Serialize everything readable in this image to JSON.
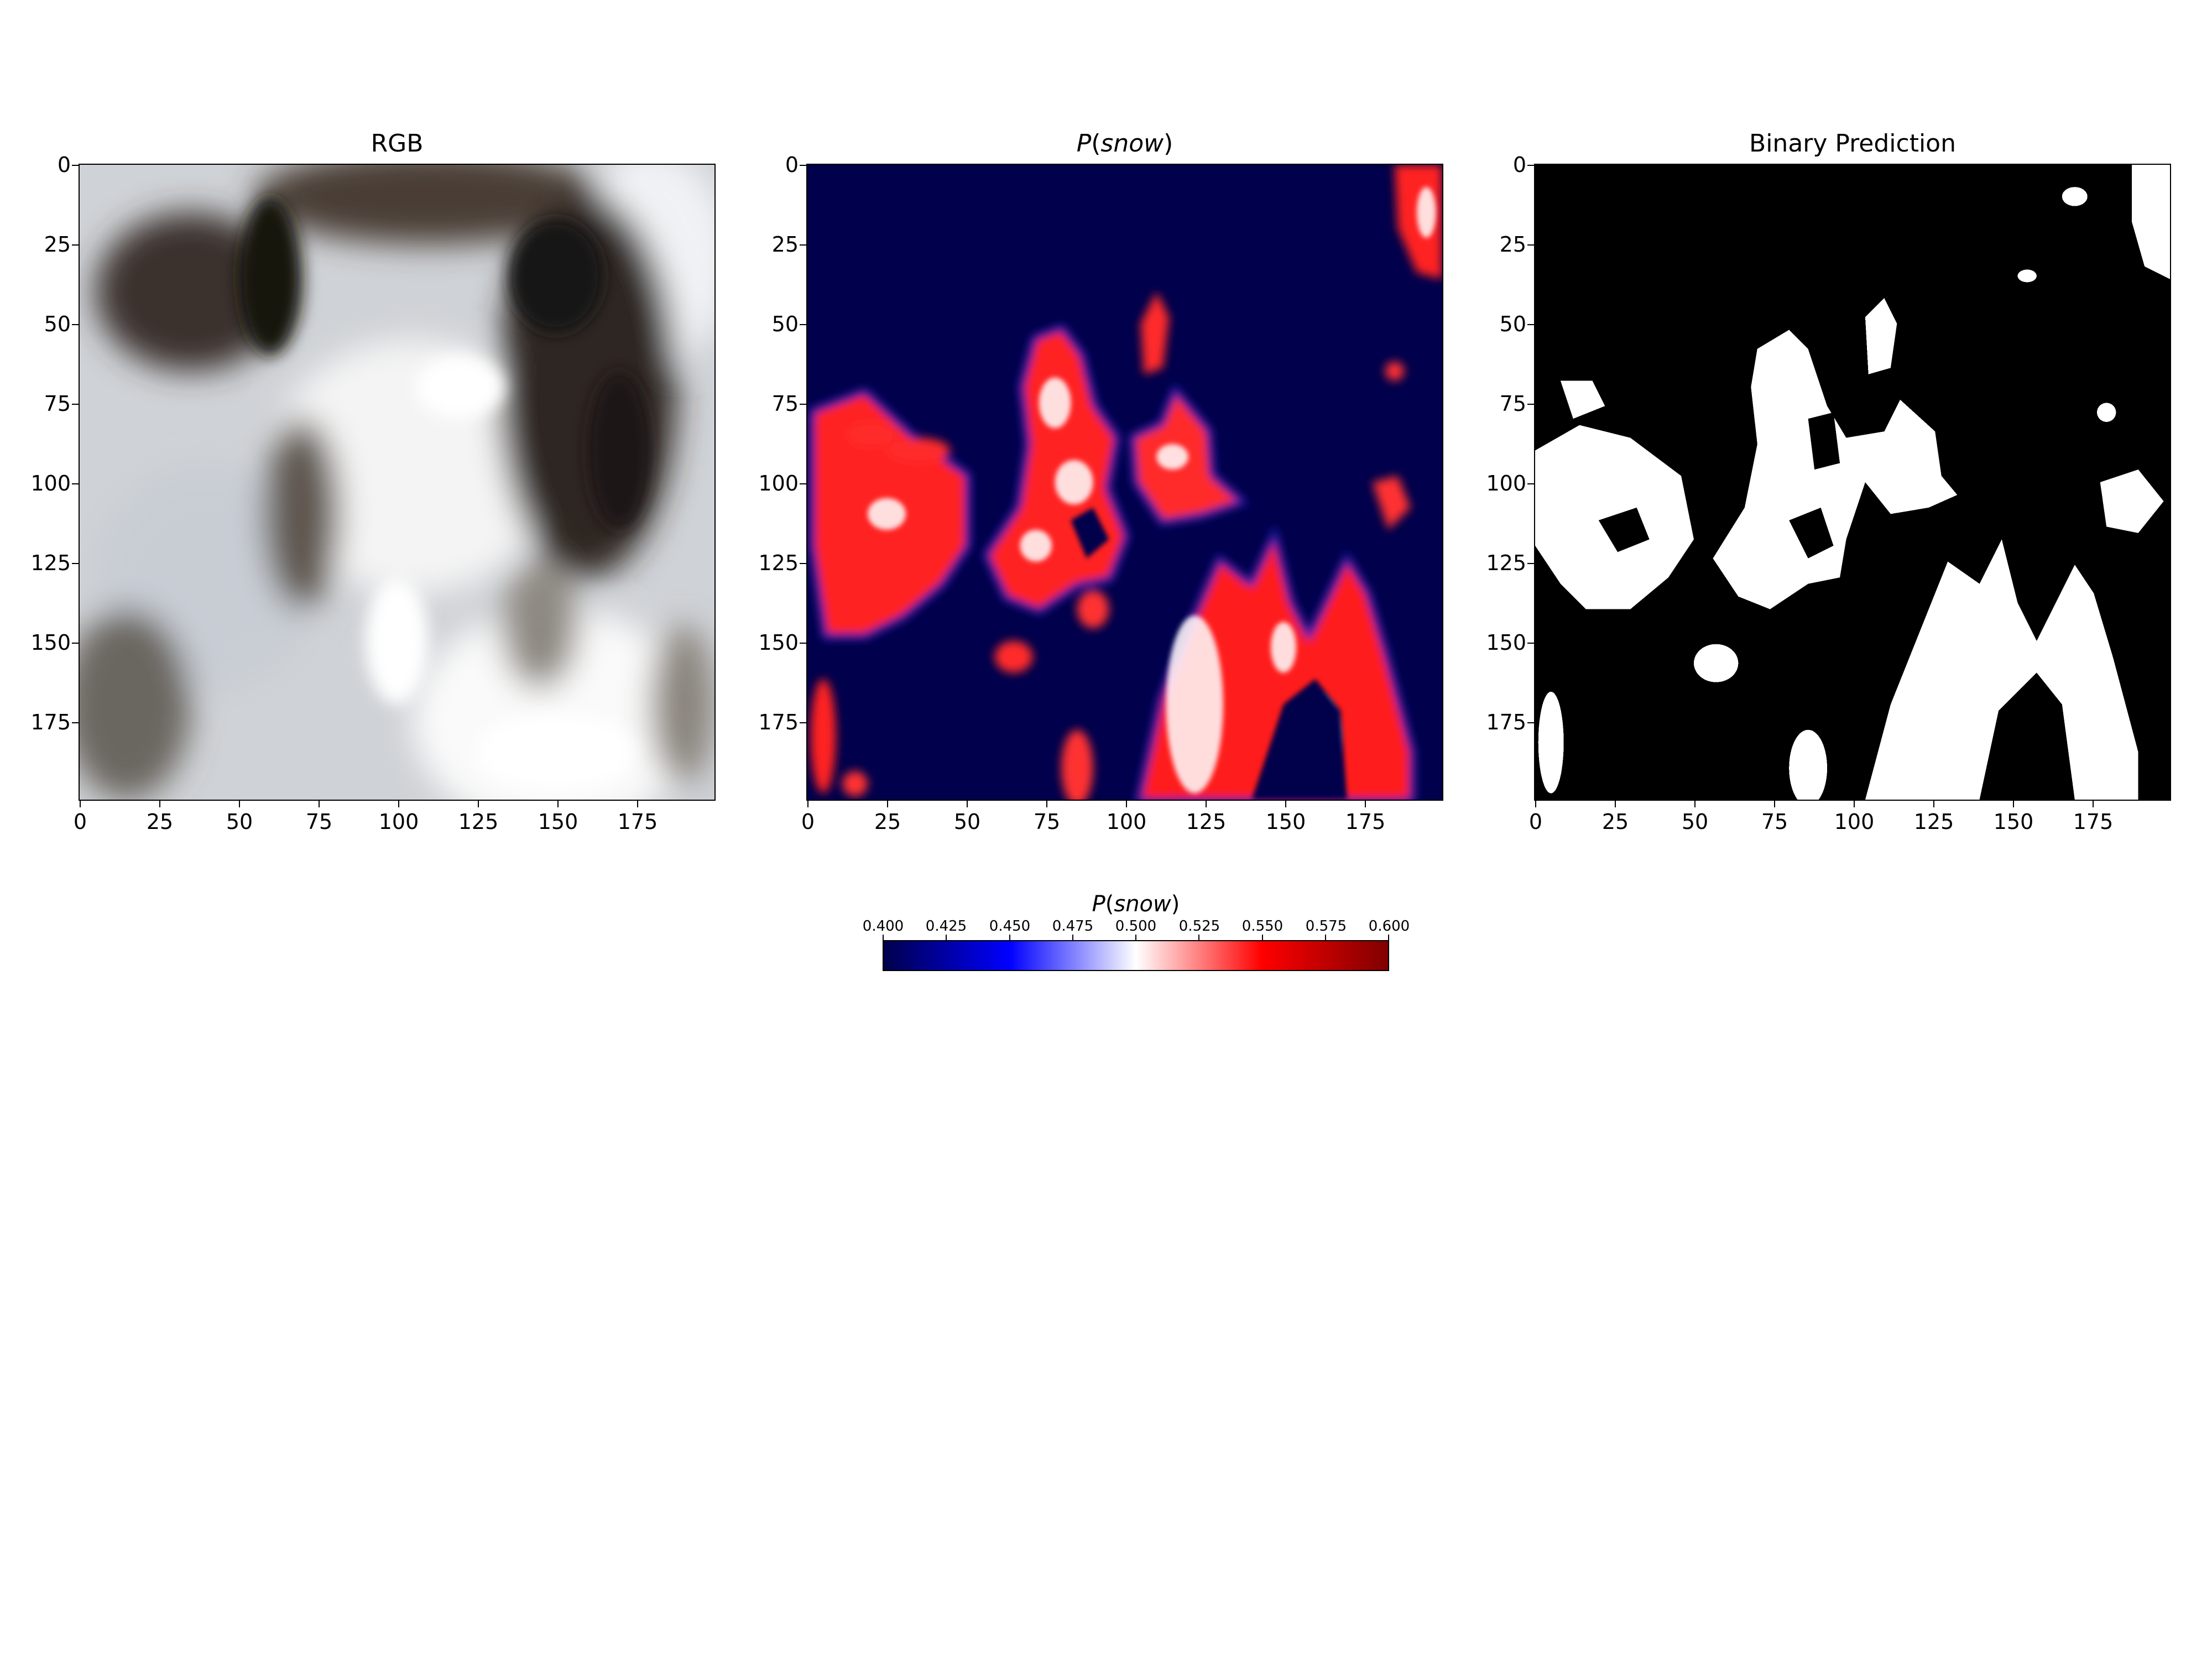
{
  "panels": [
    {
      "title": "RGB"
    },
    {
      "title_prefix": "P",
      "title_open": "(",
      "title_var": "snow",
      "title_close": ")"
    },
    {
      "title": "Binary Prediction"
    }
  ],
  "axis": {
    "y_ticks": [
      "0",
      "25",
      "50",
      "75",
      "100",
      "125",
      "150",
      "175"
    ],
    "x_ticks": [
      "0",
      "25",
      "50",
      "75",
      "100",
      "125",
      "150",
      "175"
    ]
  },
  "colorbar": {
    "label_prefix": "P",
    "label_open": "(",
    "label_var": "snow",
    "label_close": ")",
    "ticks": [
      "0.400",
      "0.425",
      "0.450",
      "0.475",
      "0.500",
      "0.525",
      "0.550",
      "0.575",
      "0.600"
    ],
    "colors": [
      "#00004c",
      "#0000ff",
      "#ffffff",
      "#ff0000",
      "#800000"
    ]
  },
  "image_content": {
    "rgb": "satellite image of a mountain valley with snow cover and dark forest",
    "probability_map": "snow probability heatmap, dark blue background with red snow regions",
    "binary": "black and white snow mask"
  }
}
